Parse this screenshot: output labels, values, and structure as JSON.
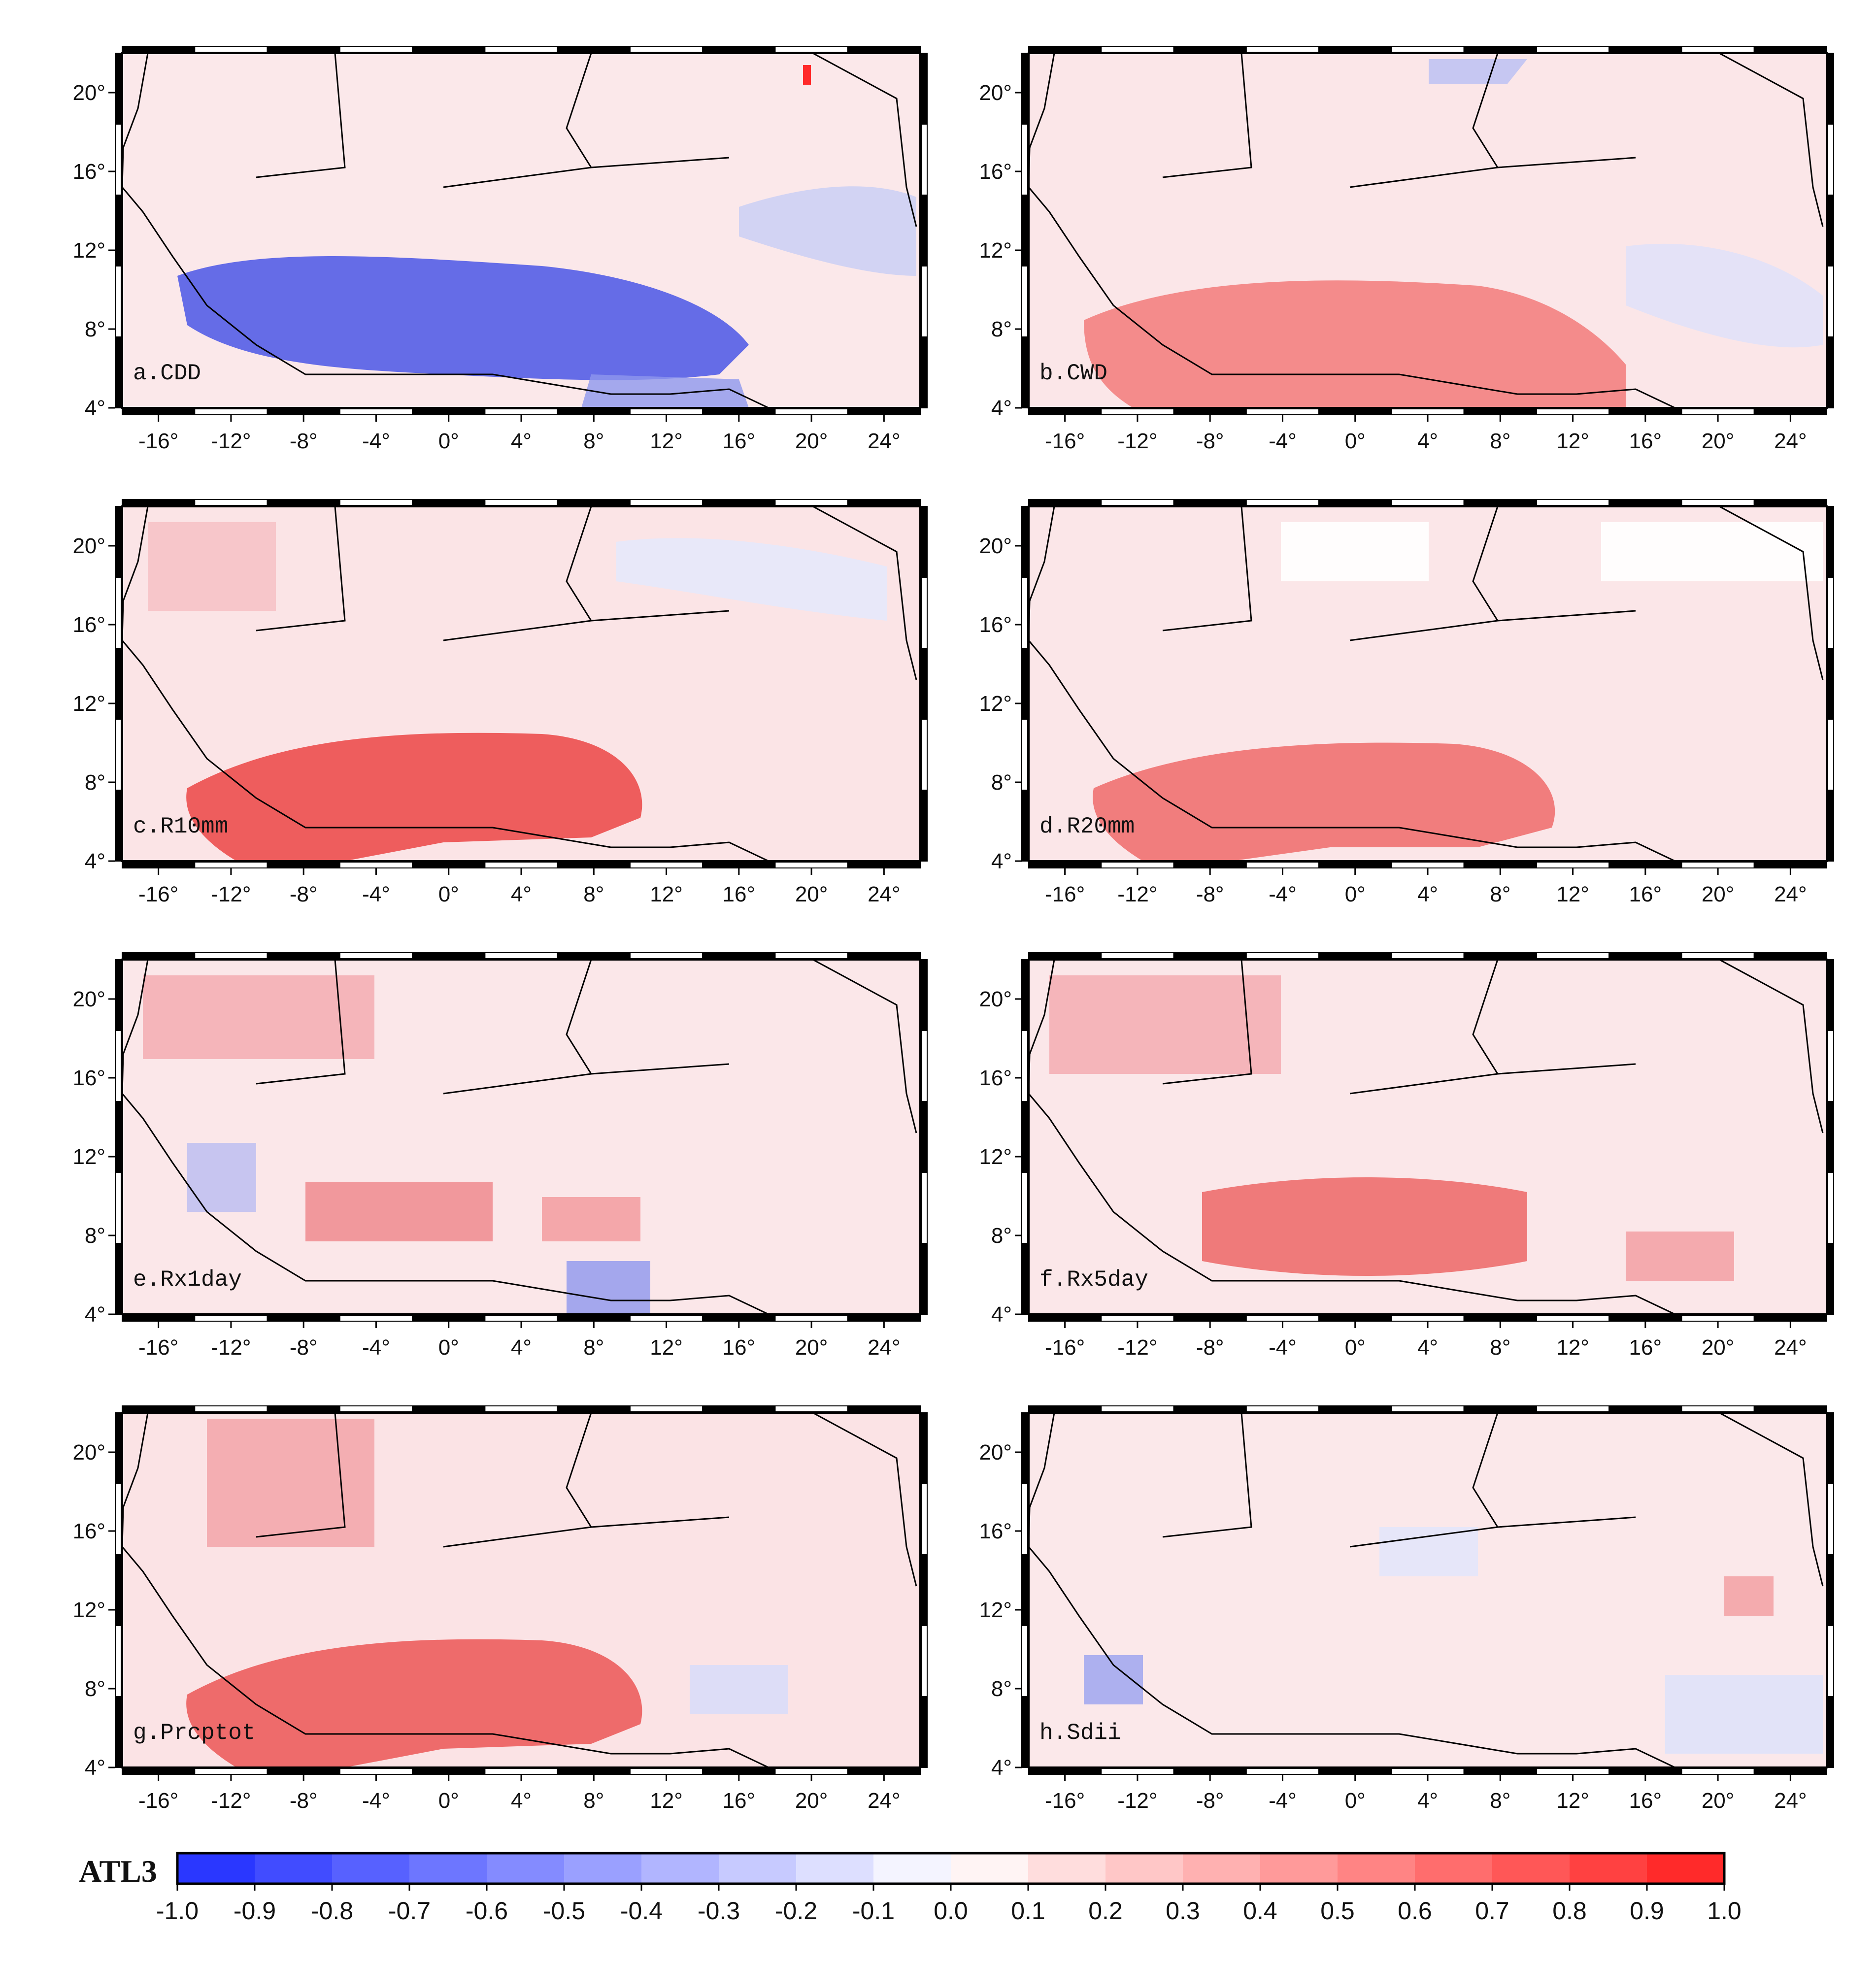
{
  "figure": {
    "colorbar_title": "ATL3",
    "colorbar_ticks": [
      "-1.0",
      "-0.9",
      "-0.8",
      "-0.7",
      "-0.6",
      "-0.5",
      "-0.4",
      "-0.3",
      "-0.2",
      "-0.1",
      "0.0",
      "0.1",
      "0.2",
      "0.3",
      "0.4",
      "0.5",
      "0.6",
      "0.7",
      "0.8",
      "0.9",
      "1.0"
    ],
    "colorbar_range": [
      -1.0,
      1.0
    ],
    "colors": {
      "negative": "#1f2cff",
      "positive": "#ff1f1f",
      "neutral": "#ffffff"
    },
    "lat_ticks": [
      "20°",
      "16°",
      "12°",
      "8°",
      "4°"
    ],
    "lon_ticks": [
      "-16°",
      "-12°",
      "-8°",
      "-4°",
      "0°",
      "4°",
      "8°",
      "12°",
      "16°",
      "20°",
      "24°"
    ],
    "lon_range": [
      -18,
      26
    ],
    "lat_range": [
      4,
      22
    ],
    "panels": [
      {
        "label": "a.CDD",
        "trend": "negative"
      },
      {
        "label": "b.CWD",
        "trend": "positive"
      },
      {
        "label": "c.R10mm",
        "trend": "positive"
      },
      {
        "label": "d.R20mm",
        "trend": "positive"
      },
      {
        "label": "e.Rx1day",
        "trend": "positive"
      },
      {
        "label": "f.Rx5day",
        "trend": "positive"
      },
      {
        "label": "g.Prcptot",
        "trend": "positive"
      },
      {
        "label": "h.Sdii",
        "trend": "positive"
      }
    ]
  }
}
